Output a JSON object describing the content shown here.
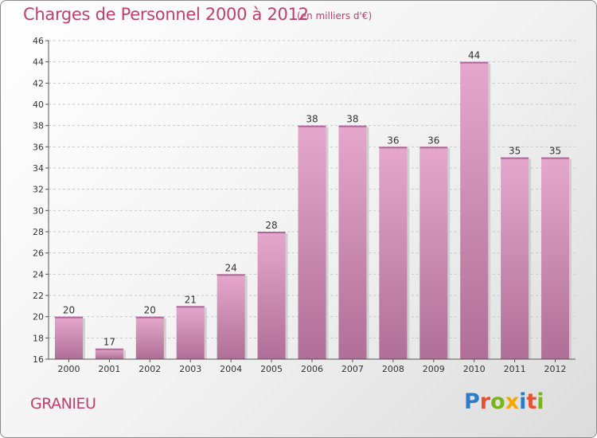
{
  "header": {
    "title": "Charges de Personnel 2000 à 2012",
    "subtitle": "(en milliers d'€)"
  },
  "footer": {
    "commune": "GRANIEU",
    "logo": "Proxiti"
  },
  "colors": {
    "title": "#c0406a",
    "bar_top": "#e5a8cc",
    "bar_bottom": "#b06f96",
    "logo_letters": [
      "#2e7bc8",
      "#e8502f",
      "#7ab51d",
      "#f5a800",
      "#2e7bc8",
      "#e8502f",
      "#7ab51d"
    ]
  },
  "chart_data": {
    "type": "bar",
    "title": "Charges de Personnel 2000 à 2012",
    "subtitle": "(en milliers d'€)",
    "categories": [
      "2000",
      "2001",
      "2002",
      "2003",
      "2004",
      "2005",
      "2006",
      "2007",
      "2008",
      "2009",
      "2010",
      "2011",
      "2012"
    ],
    "values": [
      20,
      17,
      20,
      21,
      24,
      28,
      38,
      38,
      36,
      36,
      44,
      35,
      35
    ],
    "ylim": [
      16,
      46
    ],
    "yticks": [
      16,
      18,
      20,
      22,
      24,
      26,
      28,
      30,
      32,
      34,
      36,
      38,
      40,
      42,
      44,
      46
    ],
    "grid": "horizontal dashed",
    "legend": "none"
  }
}
